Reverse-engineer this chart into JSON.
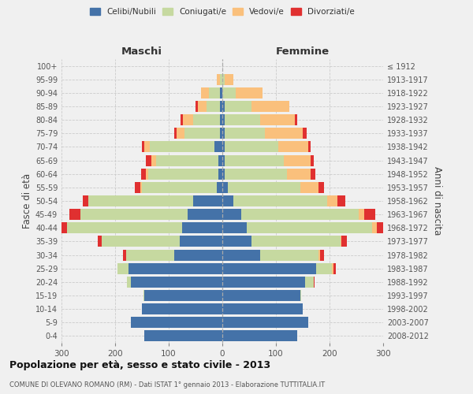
{
  "age_groups": [
    "0-4",
    "5-9",
    "10-14",
    "15-19",
    "20-24",
    "25-29",
    "30-34",
    "35-39",
    "40-44",
    "45-49",
    "50-54",
    "55-59",
    "60-64",
    "65-69",
    "70-74",
    "75-79",
    "80-84",
    "85-89",
    "90-94",
    "95-99",
    "100+"
  ],
  "birth_years": [
    "2008-2012",
    "2003-2007",
    "1998-2002",
    "1993-1997",
    "1988-1992",
    "1983-1987",
    "1978-1982",
    "1973-1977",
    "1968-1972",
    "1963-1967",
    "1958-1962",
    "1953-1957",
    "1948-1952",
    "1943-1947",
    "1938-1942",
    "1933-1937",
    "1928-1932",
    "1923-1927",
    "1918-1922",
    "1913-1917",
    "≤ 1912"
  ],
  "maschi": {
    "celibi": [
      145,
      170,
      150,
      145,
      170,
      175,
      90,
      80,
      75,
      65,
      55,
      10,
      8,
      8,
      15,
      5,
      5,
      5,
      5,
      0,
      0
    ],
    "coniugati": [
      0,
      0,
      0,
      2,
      8,
      20,
      90,
      145,
      215,
      200,
      195,
      140,
      130,
      115,
      120,
      65,
      50,
      25,
      20,
      5,
      0
    ],
    "vedovi": [
      0,
      0,
      0,
      0,
      0,
      0,
      0,
      0,
      0,
      0,
      0,
      3,
      5,
      10,
      10,
      15,
      18,
      15,
      15,
      5,
      0
    ],
    "divorziati": [
      0,
      0,
      0,
      0,
      0,
      0,
      5,
      8,
      10,
      20,
      10,
      10,
      8,
      10,
      5,
      5,
      5,
      5,
      0,
      0,
      0
    ]
  },
  "femmine": {
    "nubili": [
      140,
      160,
      150,
      145,
      155,
      175,
      70,
      55,
      45,
      35,
      20,
      10,
      5,
      5,
      5,
      5,
      5,
      5,
      0,
      0,
      0
    ],
    "coniugate": [
      0,
      0,
      0,
      2,
      15,
      30,
      110,
      165,
      235,
      220,
      175,
      135,
      115,
      110,
      100,
      75,
      65,
      50,
      25,
      5,
      0
    ],
    "vedove": [
      0,
      0,
      0,
      0,
      0,
      2,
      2,
      2,
      8,
      10,
      20,
      35,
      45,
      50,
      55,
      70,
      65,
      70,
      50,
      15,
      0
    ],
    "divorziate": [
      0,
      0,
      0,
      0,
      2,
      5,
      8,
      10,
      15,
      20,
      15,
      10,
      8,
      5,
      5,
      8,
      5,
      0,
      0,
      0,
      0
    ]
  },
  "colors": {
    "celibi": "#4472a8",
    "coniugati": "#c6d9a0",
    "vedovi": "#fac07c",
    "divorziati": "#e03030"
  },
  "title": "Popolazione per età, sesso e stato civile - 2013",
  "subtitle": "COMUNE DI OLEVANO ROMANO (RM) - Dati ISTAT 1° gennaio 2013 - Elaborazione TUTTITALIA.IT",
  "xlabel_left": "Maschi",
  "xlabel_right": "Femmine",
  "ylabel_left": "Fasce di età",
  "ylabel_right": "Anni di nascita",
  "xlim": 300,
  "bg_color": "#f0f0f0",
  "grid_color": "#cccccc"
}
